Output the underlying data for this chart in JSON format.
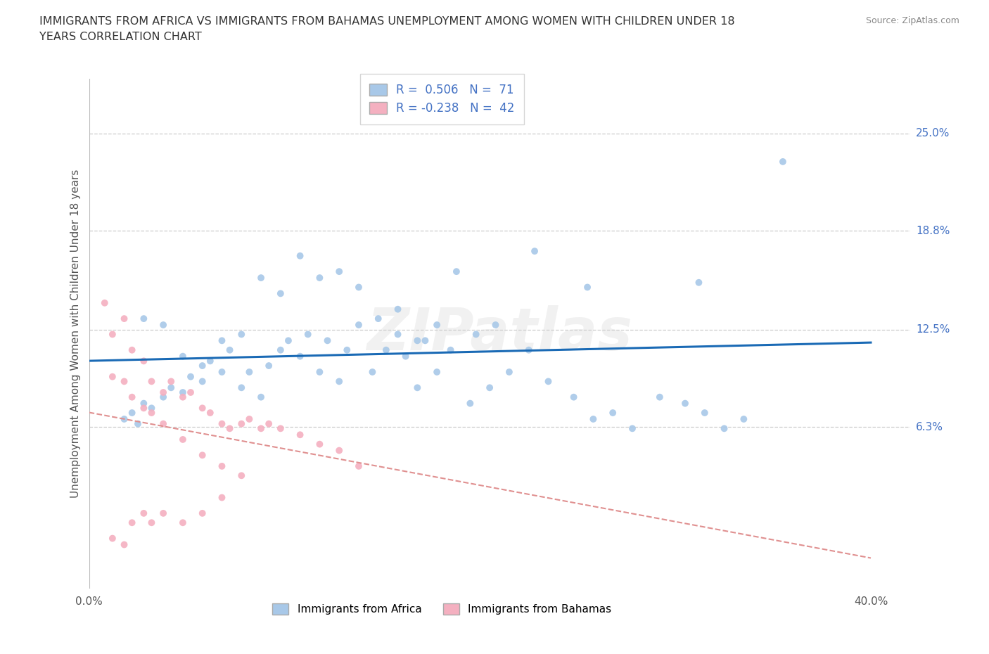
{
  "title_line1": "IMMIGRANTS FROM AFRICA VS IMMIGRANTS FROM BAHAMAS UNEMPLOYMENT AMONG WOMEN WITH CHILDREN UNDER 18",
  "title_line2": "YEARS CORRELATION CHART",
  "source_text": "Source: ZipAtlas.com",
  "ylabel": "Unemployment Among Women with Children Under 18 years",
  "xlim": [
    0.0,
    0.42
  ],
  "ylim": [
    -0.04,
    0.285
  ],
  "xtick_vals": [
    0.0,
    0.4
  ],
  "xtick_labels": [
    "0.0%",
    "40.0%"
  ],
  "ytick_positions": [
    0.063,
    0.125,
    0.188,
    0.25
  ],
  "ytick_labels": [
    "6.3%",
    "12.5%",
    "18.8%",
    "25.0%"
  ],
  "africa_R": "0.506",
  "africa_N": "71",
  "bahamas_R": "-0.238",
  "bahamas_N": "42",
  "africa_scatter_color": "#a8c8e8",
  "bahamas_scatter_color": "#f4b0c0",
  "africa_line_color": "#1a6ab5",
  "bahamas_line_color": "#e09090",
  "watermark": "ZIPatlas",
  "legend_label_africa": "Immigrants from Africa",
  "legend_label_bahamas": "Immigrants from Bahamas",
  "africa_scatter_x": [
    0.018,
    0.022,
    0.025,
    0.028,
    0.032,
    0.038,
    0.042,
    0.048,
    0.052,
    0.058,
    0.062,
    0.068,
    0.072,
    0.078,
    0.082,
    0.088,
    0.092,
    0.098,
    0.102,
    0.108,
    0.112,
    0.118,
    0.122,
    0.128,
    0.132,
    0.138,
    0.145,
    0.152,
    0.158,
    0.162,
    0.168,
    0.172,
    0.178,
    0.185,
    0.195,
    0.205,
    0.215,
    0.225,
    0.235,
    0.248,
    0.258,
    0.268,
    0.278,
    0.292,
    0.305,
    0.315,
    0.325,
    0.335,
    0.028,
    0.038,
    0.048,
    0.058,
    0.068,
    0.078,
    0.088,
    0.098,
    0.108,
    0.118,
    0.128,
    0.138,
    0.148,
    0.158,
    0.168,
    0.178,
    0.188,
    0.198,
    0.208,
    0.228,
    0.255,
    0.312,
    0.355
  ],
  "africa_scatter_y": [
    0.068,
    0.072,
    0.065,
    0.078,
    0.075,
    0.082,
    0.088,
    0.085,
    0.095,
    0.092,
    0.105,
    0.098,
    0.112,
    0.088,
    0.098,
    0.082,
    0.102,
    0.112,
    0.118,
    0.108,
    0.122,
    0.098,
    0.118,
    0.092,
    0.112,
    0.128,
    0.098,
    0.112,
    0.122,
    0.108,
    0.088,
    0.118,
    0.098,
    0.112,
    0.078,
    0.088,
    0.098,
    0.112,
    0.092,
    0.082,
    0.068,
    0.072,
    0.062,
    0.082,
    0.078,
    0.072,
    0.062,
    0.068,
    0.132,
    0.128,
    0.108,
    0.102,
    0.118,
    0.122,
    0.158,
    0.148,
    0.172,
    0.158,
    0.162,
    0.152,
    0.132,
    0.138,
    0.118,
    0.128,
    0.162,
    0.122,
    0.128,
    0.175,
    0.152,
    0.155,
    0.232
  ],
  "bahamas_scatter_x": [
    0.008,
    0.012,
    0.018,
    0.022,
    0.028,
    0.032,
    0.038,
    0.042,
    0.048,
    0.052,
    0.058,
    0.062,
    0.068,
    0.072,
    0.078,
    0.082,
    0.088,
    0.092,
    0.098,
    0.108,
    0.118,
    0.128,
    0.138,
    0.012,
    0.018,
    0.022,
    0.028,
    0.032,
    0.038,
    0.048,
    0.058,
    0.068,
    0.078,
    0.012,
    0.018,
    0.022,
    0.028,
    0.032,
    0.038,
    0.048,
    0.058,
    0.068
  ],
  "bahamas_scatter_y": [
    0.142,
    0.122,
    0.132,
    0.112,
    0.105,
    0.092,
    0.085,
    0.092,
    0.082,
    0.085,
    0.075,
    0.072,
    0.065,
    0.062,
    0.065,
    0.068,
    0.062,
    0.065,
    0.062,
    0.058,
    0.052,
    0.048,
    0.038,
    0.095,
    0.092,
    0.082,
    0.075,
    0.072,
    0.065,
    0.055,
    0.045,
    0.038,
    0.032,
    -0.008,
    -0.012,
    0.002,
    0.008,
    0.002,
    0.008,
    0.002,
    0.008,
    0.018
  ]
}
